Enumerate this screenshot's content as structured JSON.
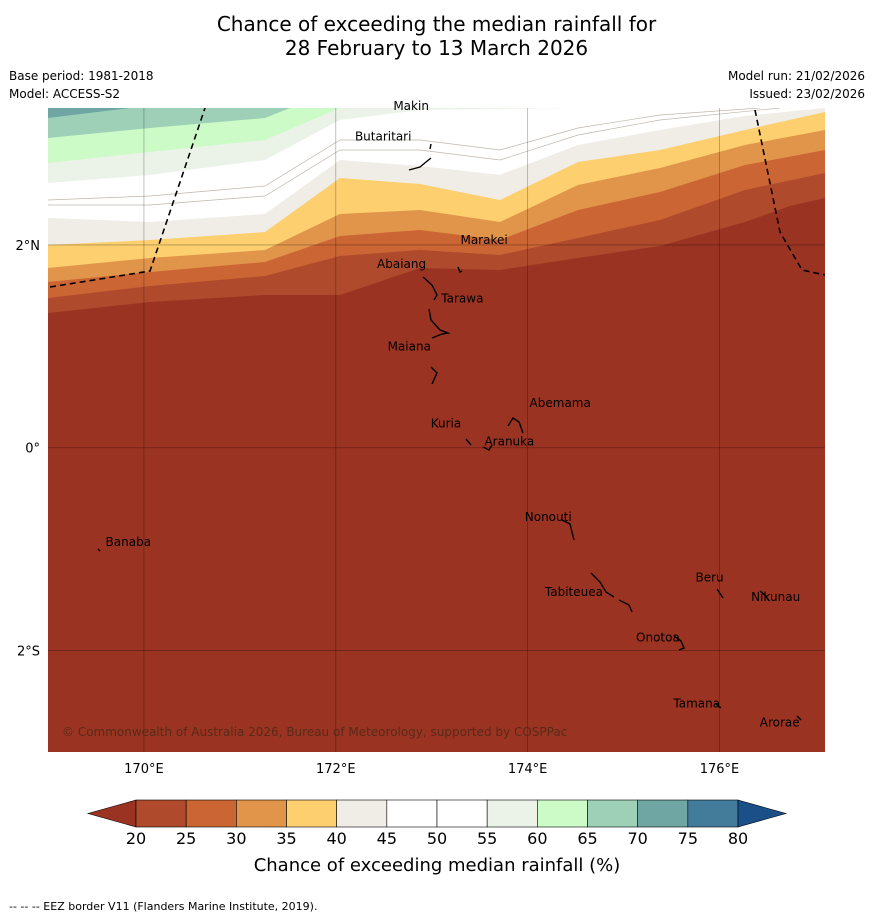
{
  "title": {
    "line1": "Chance of exceeding the median rainfall for",
    "line2": "28 February to 13 March 2026"
  },
  "meta": {
    "base_period": "Base period: 1981-2018",
    "model": "Model: ACCESS-S2",
    "model_run": "Model run: 21/02/2026",
    "issued": "Issued: 23/02/2026"
  },
  "map": {
    "lon_range": [
      169,
      177.1
    ],
    "lat_range": [
      -3.0,
      3.35
    ],
    "lon_ticks": [
      {
        "value": 170,
        "label": "170°E"
      },
      {
        "value": 172,
        "label": "172°E"
      },
      {
        "value": 174,
        "label": "174°E"
      },
      {
        "value": 176,
        "label": "176°E"
      }
    ],
    "lat_ticks": [
      {
        "value": 2,
        "label": "2°N"
      },
      {
        "value": 0,
        "label": "0°"
      },
      {
        "value": -2,
        "label": "2°S"
      }
    ],
    "places": [
      {
        "name": "Makin",
        "lon": 172.6,
        "lat": 3.33
      },
      {
        "name": "Butaritari",
        "lon": 172.2,
        "lat": 3.03
      },
      {
        "name": "Marakei",
        "lon": 173.3,
        "lat": 2.01
      },
      {
        "name": "Abaiang",
        "lon": 172.43,
        "lat": 1.77
      },
      {
        "name": "Tarawa",
        "lon": 173.1,
        "lat": 1.43
      },
      {
        "name": "Maiana",
        "lon": 172.54,
        "lat": 0.96
      },
      {
        "name": "Abemama",
        "lon": 174.02,
        "lat": 0.4
      },
      {
        "name": "Kuria",
        "lon": 172.99,
        "lat": 0.2
      },
      {
        "name": "Aranuka",
        "lon": 173.55,
        "lat": 0.02
      },
      {
        "name": "Nonouti",
        "lon": 173.97,
        "lat": -0.72
      },
      {
        "name": "Banaba",
        "lon": 169.6,
        "lat": -0.97
      },
      {
        "name": "Beru",
        "lon": 175.75,
        "lat": -1.32
      },
      {
        "name": "Nikunau",
        "lon": 176.33,
        "lat": -1.51
      },
      {
        "name": "Tabiteuea",
        "lon": 174.18,
        "lat": -1.46
      },
      {
        "name": "Onotoa",
        "lon": 175.13,
        "lat": -1.91
      },
      {
        "name": "Tamana",
        "lon": 175.52,
        "lat": -2.56
      },
      {
        "name": "Arorae",
        "lon": 176.42,
        "lat": -2.75
      }
    ],
    "copyright": "© Commonwealth of Australia 2026, Bureau of Meteorology, supported by COSPPac"
  },
  "legend": {
    "ticks": [
      "20",
      "25",
      "30",
      "35",
      "40",
      "45",
      "50",
      "55",
      "60",
      "65",
      "70",
      "75",
      "80"
    ],
    "colors": [
      "#9a3322",
      "#b04a2c",
      "#cc6534",
      "#e0954a",
      "#fdcf6e",
      "#f0ece6",
      "#ffffff",
      "#ffffff",
      "#ebf3e9",
      "#ccfbc8",
      "#9ed0b8",
      "#6fa6a4",
      "#427c9a",
      "#1b4f88"
    ],
    "label": "Chance of exceeding median rainfall (%)"
  },
  "footnote": "--  --  -- EEZ border V11 (Flanders Marine Institute, 2019)."
}
